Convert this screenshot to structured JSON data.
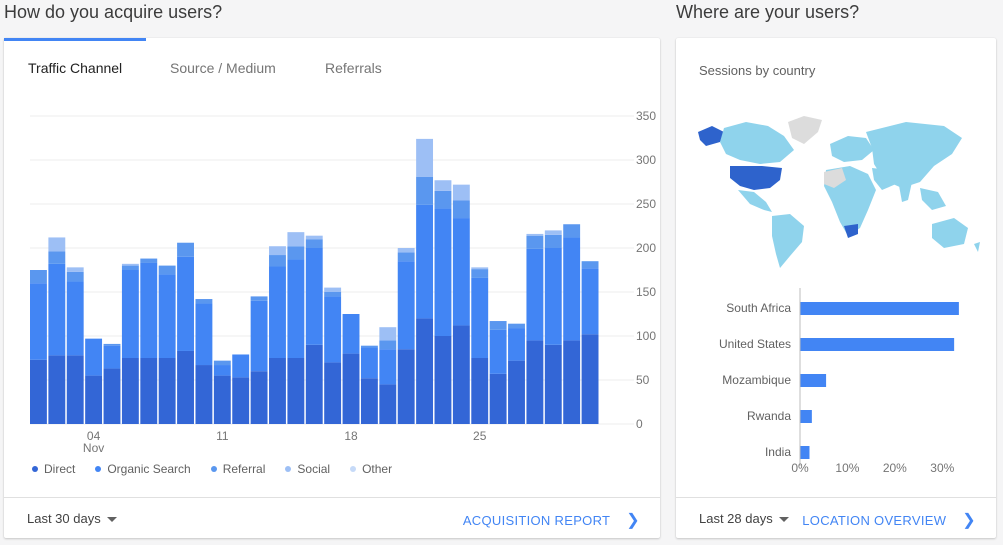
{
  "acquire": {
    "title": "How do you acquire users?",
    "tabs": [
      {
        "label": "Traffic Channel",
        "active": true
      },
      {
        "label": "Source / Medium",
        "active": false
      },
      {
        "label": "Referrals",
        "active": false
      }
    ],
    "footer": {
      "period_label": "Last 30 days",
      "link_label": "ACQUISITION REPORT"
    }
  },
  "location": {
    "title": "Where are your users?",
    "subtitle": "Sessions by country",
    "footer": {
      "period_label": "Last 28 days",
      "link_label": "LOCATION OVERVIEW"
    }
  },
  "colors": {
    "accent": "#4285f4",
    "direct": "#3366d6",
    "organic": "#4285f4",
    "referral": "#5a97ef",
    "social": "#9dbff5",
    "other": "#c6daf8",
    "map_highlight": "#2e63cc",
    "map_base": "#8fd3ec",
    "map_nodata": "#dcdcdc"
  },
  "chart_data": [
    {
      "type": "bar",
      "stacked": true,
      "x_tick_labels": [
        "04",
        "Nov",
        "11",
        "18",
        "25"
      ],
      "y_tick_labels": [
        "350",
        "300",
        "250",
        "200",
        "150",
        "100",
        "50",
        "0"
      ],
      "ylim": [
        0,
        350
      ],
      "grid": true,
      "legend_position": "bottom-left",
      "series": [
        {
          "name": "Direct",
          "values": [
            73,
            78,
            78,
            55,
            63,
            75,
            75,
            75,
            83,
            67,
            55,
            53,
            60,
            75,
            75,
            90,
            70,
            80,
            52,
            45,
            85,
            120,
            100,
            112,
            75,
            57,
            72,
            95,
            90,
            95,
            102
          ]
        },
        {
          "name": "Organic Search",
          "values": [
            87,
            104,
            84,
            42,
            26,
            100,
            108,
            95,
            107,
            70,
            12,
            26,
            80,
            104,
            112,
            110,
            75,
            45,
            35,
            40,
            100,
            129,
            145,
            122,
            91,
            50,
            37,
            104,
            110,
            117,
            75
          ]
        },
        {
          "name": "Referral",
          "values": [
            15,
            14,
            11,
            0,
            2,
            5,
            5,
            10,
            16,
            5,
            5,
            0,
            5,
            13,
            15,
            10,
            5,
            0,
            2,
            10,
            10,
            32,
            20,
            20,
            10,
            10,
            5,
            15,
            15,
            15,
            8
          ]
        },
        {
          "name": "Social",
          "values": [
            0,
            16,
            5,
            0,
            0,
            2,
            0,
            0,
            0,
            0,
            0,
            0,
            0,
            10,
            16,
            4,
            5,
            0,
            0,
            15,
            5,
            43,
            12,
            18,
            2,
            0,
            0,
            2,
            5,
            0,
            0
          ]
        },
        {
          "name": "Other",
          "values": [
            0,
            0,
            0,
            0,
            0,
            0,
            0,
            0,
            0,
            0,
            0,
            0,
            0,
            0,
            0,
            0,
            0,
            0,
            0,
            0,
            0,
            0,
            0,
            0,
            0,
            0,
            0,
            0,
            0,
            0,
            0
          ]
        }
      ]
    },
    {
      "type": "bar",
      "orientation": "horizontal",
      "categories": [
        "South Africa",
        "United States",
        "Mozambique",
        "Rwanda",
        "India"
      ],
      "values": [
        33.5,
        32.5,
        5.5,
        2.5,
        2.0
      ],
      "x_tick_labels": [
        "0%",
        "10%",
        "20%",
        "30%"
      ],
      "xlim": [
        0,
        35
      ],
      "grid": false
    }
  ]
}
